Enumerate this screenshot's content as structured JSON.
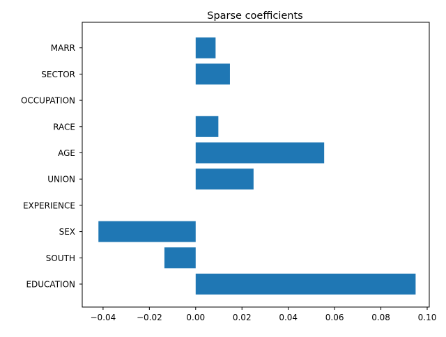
{
  "chart_data": {
    "type": "bar",
    "orientation": "horizontal",
    "title": "Sparse coefficients",
    "xlabel": "",
    "ylabel": "",
    "categories": [
      "EDUCATION",
      "SOUTH",
      "SEX",
      "EXPERIENCE",
      "UNION",
      "AGE",
      "RACE",
      "OCCUPATION",
      "SECTOR",
      "MARR"
    ],
    "values": [
      0.095,
      -0.0135,
      -0.042,
      0.0,
      0.025,
      0.0555,
      0.0098,
      0.0,
      0.0148,
      0.0086
    ],
    "xlim": [
      -0.049,
      0.1009
    ],
    "x_ticks": [
      -0.04,
      -0.02,
      0.0,
      0.02,
      0.04,
      0.06,
      0.08,
      0.1
    ],
    "x_tick_labels": [
      "−0.04",
      "−0.02",
      "0.00",
      "0.02",
      "0.04",
      "0.06",
      "0.08",
      "0.10"
    ],
    "grid": false,
    "bar_color": "#1f77b4"
  }
}
